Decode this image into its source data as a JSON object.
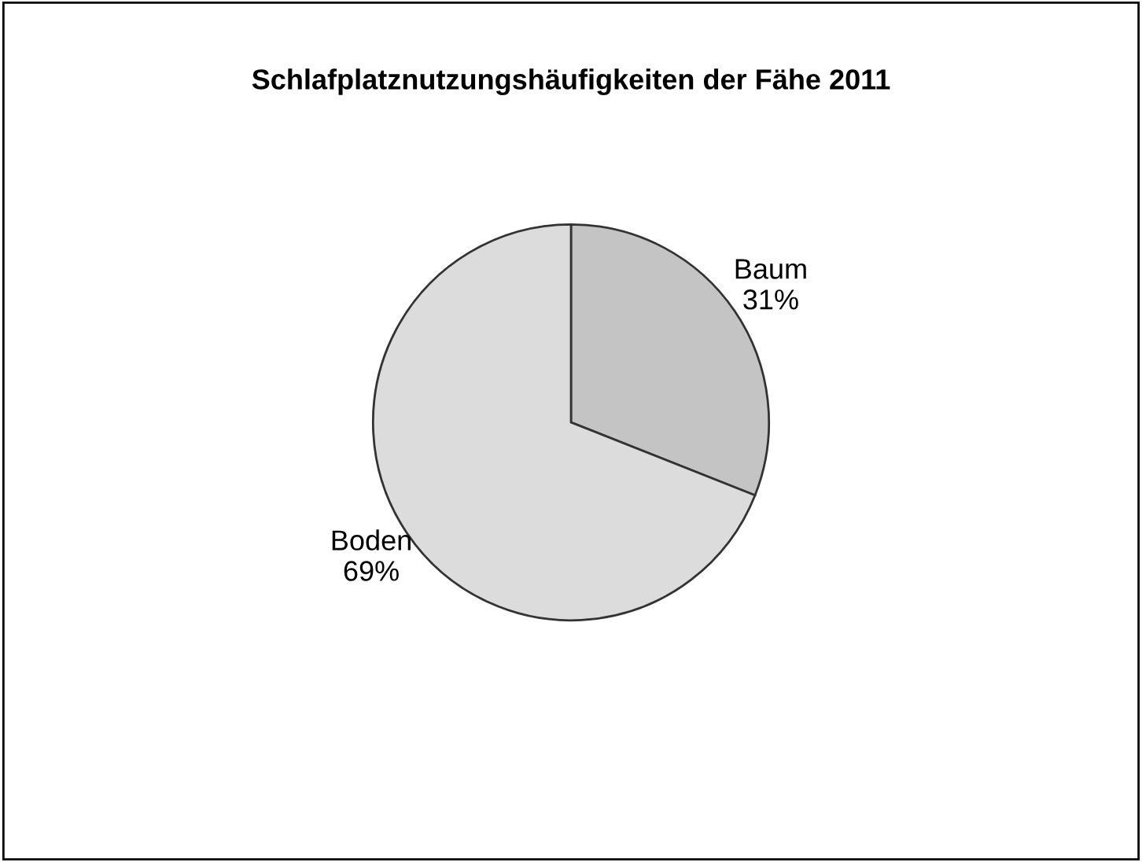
{
  "chart_data": {
    "type": "pie",
    "title": "Schlafplatznutzungshäufigkeiten der Fähe 2011",
    "categories": [
      "Baum",
      "Boden"
    ],
    "values": [
      31,
      69
    ],
    "value_labels": [
      "31%",
      "69%"
    ],
    "colors": [
      "#c4c4c4",
      "#dcdcdc"
    ],
    "legend": false
  }
}
